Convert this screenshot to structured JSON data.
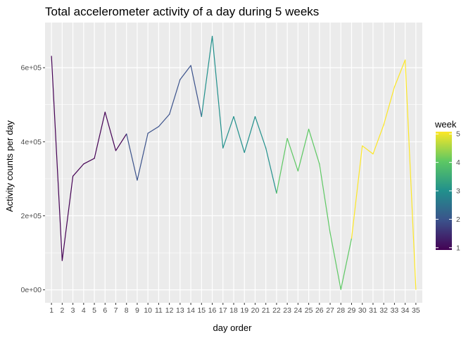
{
  "chart_data": {
    "type": "line",
    "title": "Total accelerometer activity of a day during 5 weeks",
    "xlabel": "day order",
    "ylabel": "Activity counts per day",
    "x": [
      1,
      2,
      3,
      4,
      5,
      6,
      7,
      8,
      9,
      10,
      11,
      12,
      13,
      14,
      15,
      16,
      17,
      18,
      19,
      20,
      21,
      22,
      23,
      24,
      25,
      26,
      27,
      28,
      29,
      30,
      31,
      32,
      33,
      34,
      35
    ],
    "y": [
      631000,
      79000,
      307000,
      340000,
      355000,
      480000,
      376000,
      421000,
      296000,
      423000,
      441000,
      474000,
      568000,
      606000,
      468000,
      685000,
      383000,
      468000,
      371000,
      468000,
      383000,
      261000,
      409000,
      321000,
      434000,
      340000,
      154000,
      1000,
      139000,
      389000,
      367000,
      446000,
      548000,
      621000,
      1000
    ],
    "week": [
      1,
      1,
      1,
      1,
      1,
      1,
      1,
      2,
      2,
      2,
      2,
      2,
      2,
      2,
      3,
      3,
      3,
      3,
      3,
      3,
      3,
      4,
      4,
      4,
      4,
      4,
      4,
      4,
      5,
      5,
      5,
      5,
      5,
      5,
      5
    ],
    "ylim": [
      -35000,
      722000
    ],
    "y_ticks": [
      0,
      200000,
      400000,
      600000
    ],
    "y_tick_labels": [
      "0e+00",
      "2e+05",
      "4e+05",
      "6e+05"
    ],
    "x_tick_labels": [
      "1",
      "2",
      "3",
      "4",
      "5",
      "6",
      "7",
      "8",
      "9",
      "10",
      "11",
      "12",
      "13",
      "14",
      "15",
      "16",
      "17",
      "18",
      "19",
      "20",
      "21",
      "22",
      "23",
      "24",
      "25",
      "26",
      "27",
      "28",
      "29",
      "30",
      "31",
      "32",
      "33",
      "34",
      "35"
    ],
    "grid": true,
    "legend": {
      "title": "week",
      "position": "right",
      "type": "colorbar",
      "breaks": [
        1,
        2,
        3,
        4,
        5
      ],
      "labels": [
        "1",
        "2",
        "3",
        "4",
        "5"
      ],
      "colors": [
        "#440154",
        "#3b528b",
        "#21908c",
        "#5dc863",
        "#fde725"
      ]
    },
    "colors": {
      "panel_background": "#ebebeb",
      "gridline": "#ffffff"
    }
  }
}
